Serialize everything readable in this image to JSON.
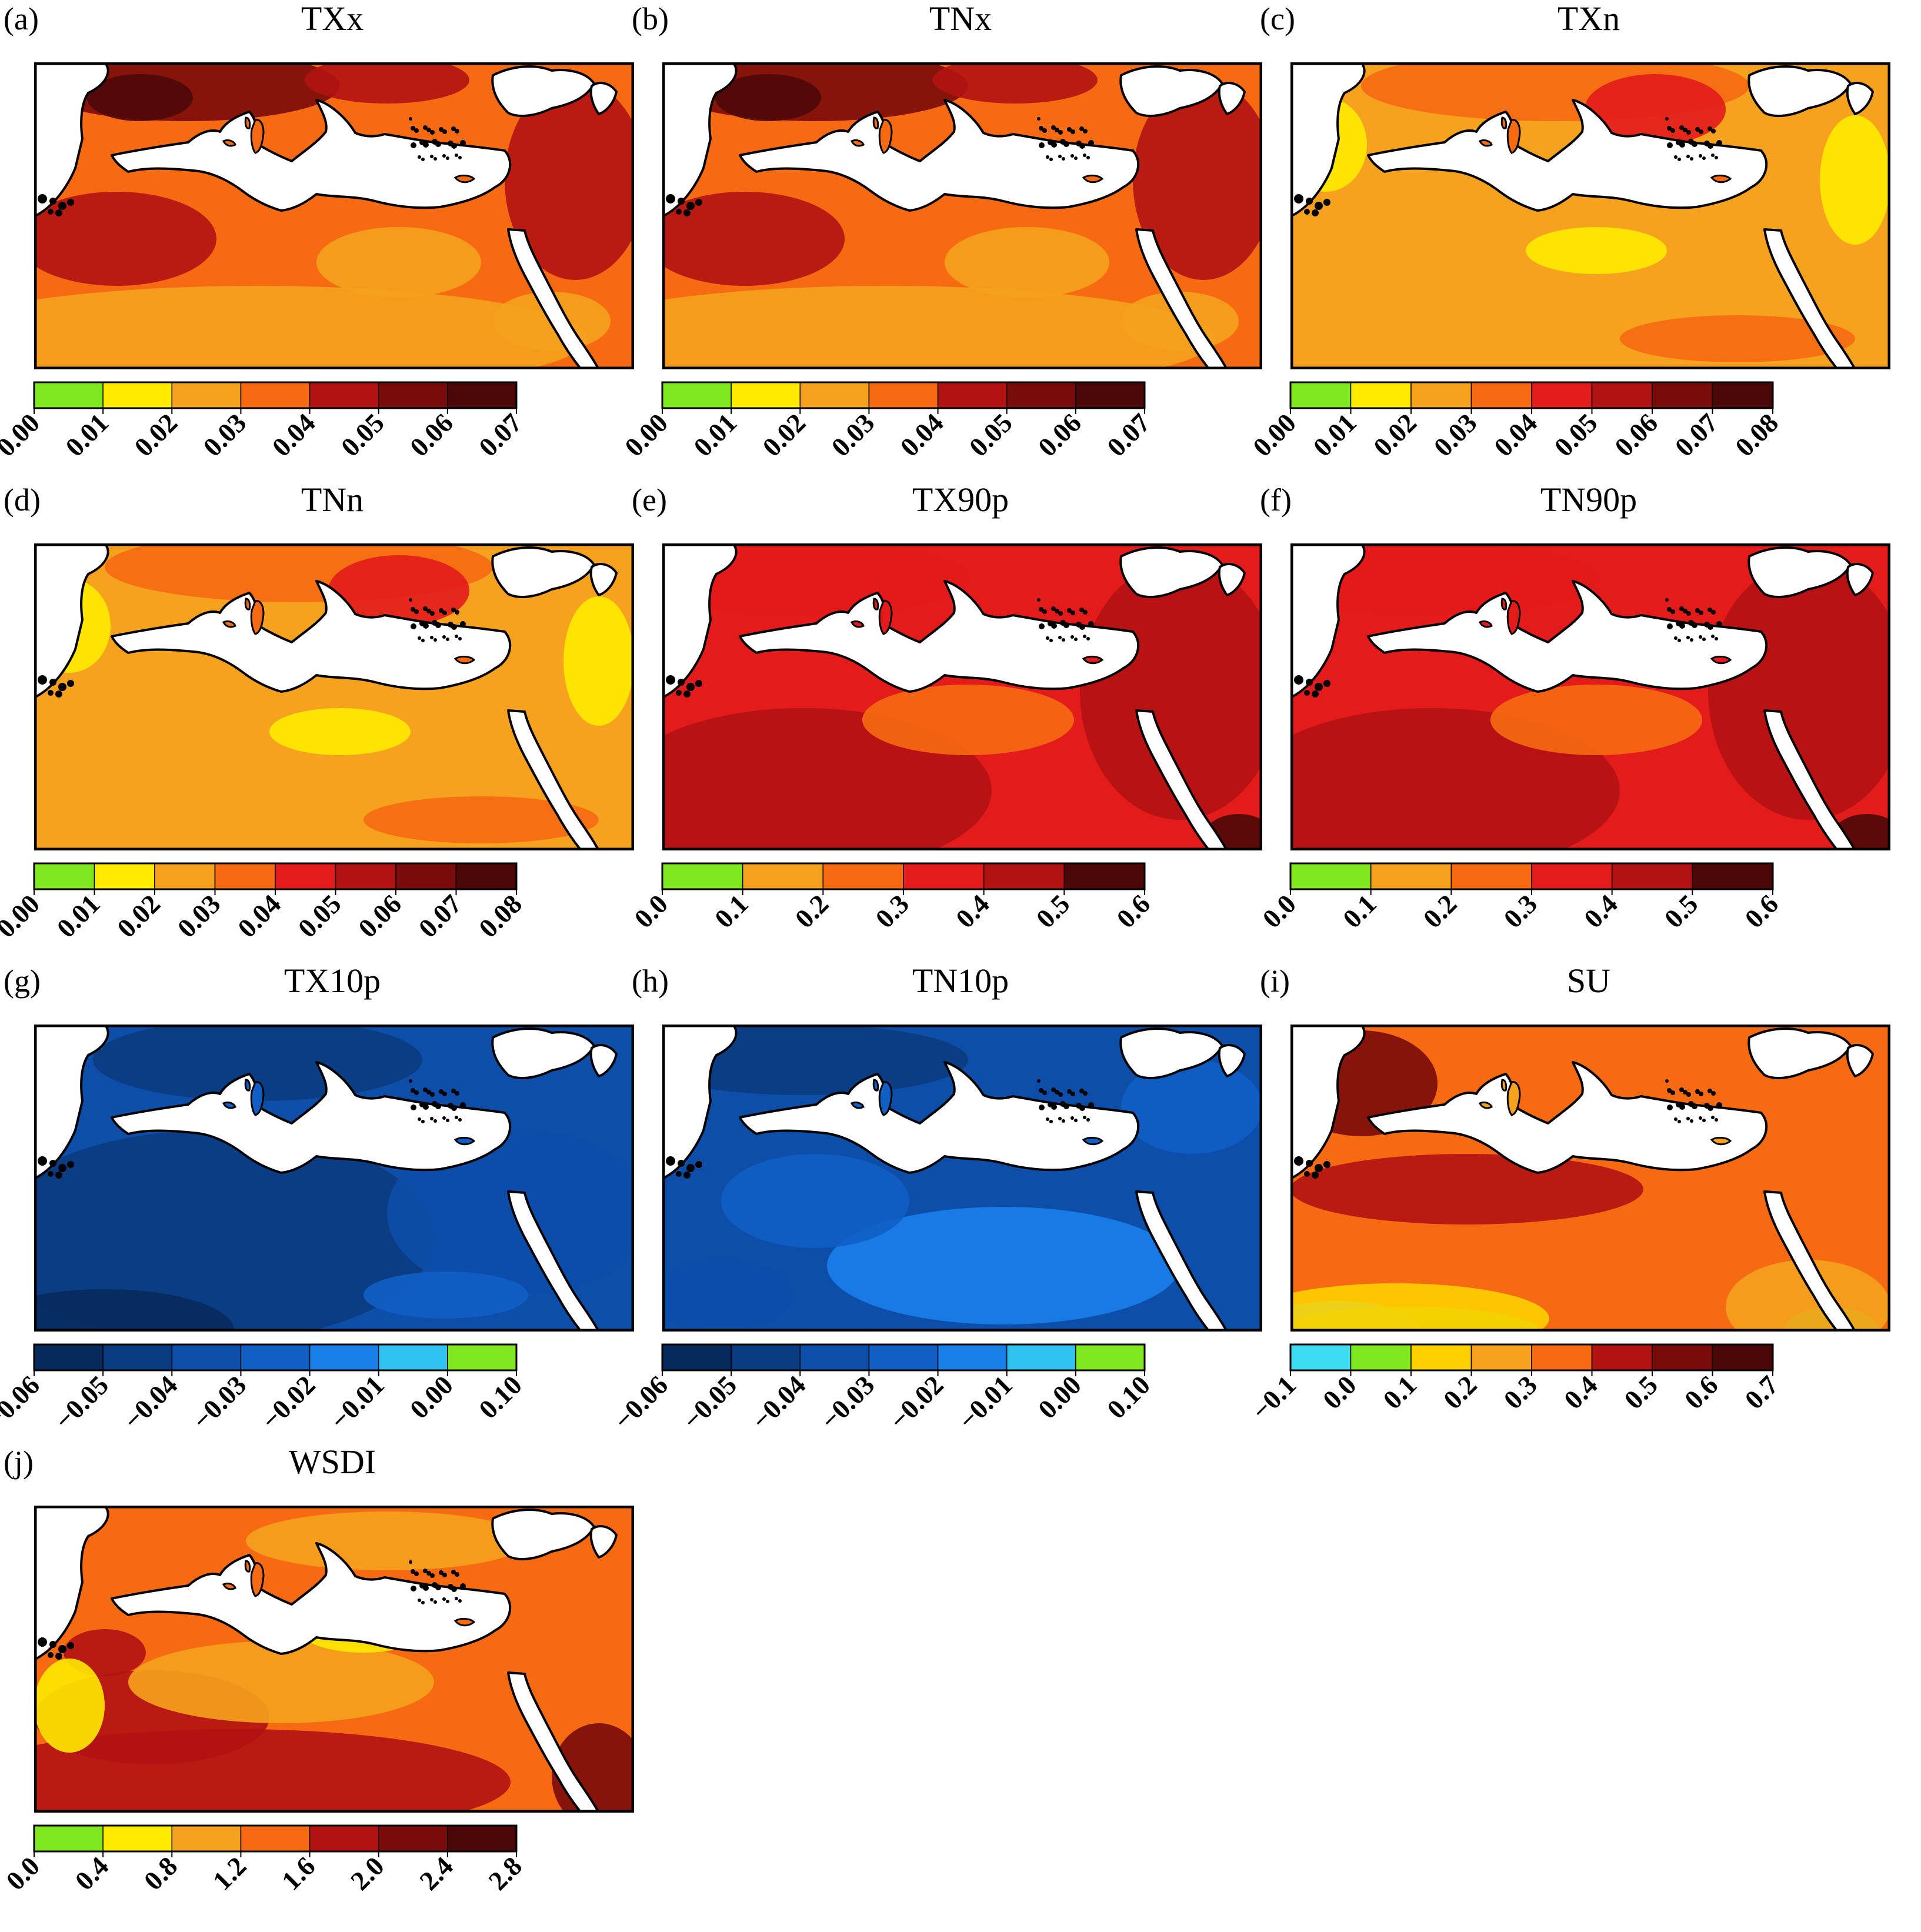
{
  "figure": {
    "panels": [
      {
        "letter": "(a)",
        "title": "TXx",
        "scheme": "warm",
        "ticks": [
          "0.00",
          "0.01",
          "0.02",
          "0.03",
          "0.04",
          "0.05",
          "0.06",
          "0.07"
        ],
        "colors": [
          "#7fe81f",
          "#ffea00",
          "#f6a21e",
          "#f66a12",
          "#b31212",
          "#7a0b0b",
          "#4c0808"
        ]
      },
      {
        "letter": "(b)",
        "title": "TNx",
        "scheme": "warm",
        "ticks": [
          "0.00",
          "0.01",
          "0.02",
          "0.03",
          "0.04",
          "0.05",
          "0.06",
          "0.07"
        ],
        "colors": [
          "#7fe81f",
          "#ffea00",
          "#f6a21e",
          "#f66a12",
          "#b31212",
          "#7a0b0b",
          "#4c0808"
        ]
      },
      {
        "letter": "(c)",
        "title": "TXn",
        "scheme": "yellow",
        "ticks": [
          "0.00",
          "0.01",
          "0.02",
          "0.03",
          "0.04",
          "0.05",
          "0.06",
          "0.07",
          "0.08"
        ],
        "colors": [
          "#7fe81f",
          "#ffea00",
          "#f6a21e",
          "#f66a12",
          "#e31b1b",
          "#b31212",
          "#7a0b0b",
          "#4c0808"
        ]
      },
      {
        "letter": "(d)",
        "title": "TNn",
        "scheme": "yellow",
        "ticks": [
          "0.00",
          "0.01",
          "0.02",
          "0.03",
          "0.04",
          "0.05",
          "0.06",
          "0.07",
          "0.08"
        ],
        "colors": [
          "#7fe81f",
          "#ffea00",
          "#f6a21e",
          "#f66a12",
          "#e31b1b",
          "#b31212",
          "#7a0b0b",
          "#4c0808"
        ]
      },
      {
        "letter": "(e)",
        "title": "TX90p",
        "scheme": "red",
        "ticks": [
          "0.0",
          "0.1",
          "0.2",
          "0.3",
          "0.4",
          "0.5",
          "0.6"
        ],
        "colors": [
          "#7fe81f",
          "#f6a21e",
          "#f66a12",
          "#e31b1b",
          "#b31212",
          "#4c0808"
        ]
      },
      {
        "letter": "(f)",
        "title": "TN90p",
        "scheme": "red",
        "ticks": [
          "0.0",
          "0.1",
          "0.2",
          "0.3",
          "0.4",
          "0.5",
          "0.6"
        ],
        "colors": [
          "#7fe81f",
          "#f6a21e",
          "#f66a12",
          "#e31b1b",
          "#b31212",
          "#4c0808"
        ]
      },
      {
        "letter": "(g)",
        "title": "TX10p",
        "scheme": "blue",
        "ticks": [
          "-0.06",
          "-0.05",
          "-0.04",
          "-0.03",
          "-0.02",
          "-0.01",
          "0.00",
          "0.10"
        ],
        "colors": [
          "#062a5c",
          "#0a3c80",
          "#0c4ea8",
          "#105fc4",
          "#1980ea",
          "#2fc4f0",
          "#7fe81f"
        ]
      },
      {
        "letter": "(h)",
        "title": "TN10p",
        "scheme": "blue2",
        "ticks": [
          "-0.06",
          "-0.05",
          "-0.04",
          "-0.03",
          "-0.02",
          "-0.01",
          "0.00",
          "0.10"
        ],
        "colors": [
          "#062a5c",
          "#0a3c80",
          "#0c4ea8",
          "#105fc4",
          "#1980ea",
          "#2fc4f0",
          "#7fe81f"
        ]
      },
      {
        "letter": "(i)",
        "title": "SU",
        "scheme": "su",
        "ticks": [
          "-0.1",
          "0.0",
          "0.1",
          "0.2",
          "0.3",
          "0.4",
          "0.5",
          "0.6",
          "0.7"
        ],
        "colors": [
          "#3ddcf0",
          "#7fe81f",
          "#ffd000",
          "#f6a21e",
          "#f66a12",
          "#b31212",
          "#7a0b0b",
          "#4c0808"
        ]
      },
      {
        "letter": "(j)",
        "title": "WSDI",
        "scheme": "wsdi",
        "ticks": [
          "0.0",
          "0.4",
          "0.8",
          "1.2",
          "1.6",
          "2.0",
          "2.4",
          "2.8"
        ],
        "colors": [
          "#7fe81f",
          "#ffea00",
          "#f6a21e",
          "#f66a12",
          "#b31212",
          "#7a0b0b",
          "#4c0808"
        ]
      }
    ]
  }
}
